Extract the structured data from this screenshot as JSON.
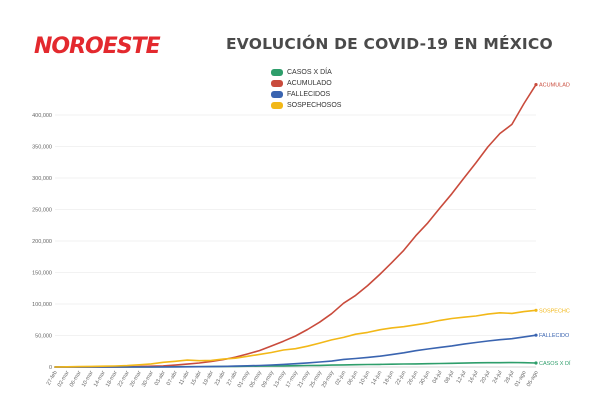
{
  "header": {
    "brand": "NOROESTE",
    "brand_color": "#e3292e",
    "title": "EVOLUCIÓN DE COVID-19 EN MÉXICO"
  },
  "chart_data": {
    "type": "line",
    "title": "EVOLUCIÓN DE COVID-19 EN MÉXICO",
    "xlabel": "",
    "ylabel": "",
    "ylim": [
      0,
      400000
    ],
    "yticks": [
      0,
      50000,
      100000,
      150000,
      200000,
      250000,
      300000,
      350000,
      400000
    ],
    "ytick_labels": [
      "0",
      "50,000",
      "100,000",
      "150,000",
      "200,000",
      "250,000",
      "300,000",
      "350,000",
      "400,000"
    ],
    "grid": true,
    "legend_position": "top-center",
    "x": [
      "27-feb",
      "02-mar",
      "06-mar",
      "10-mar",
      "14-mar",
      "18-mar",
      "22-mar",
      "26-mar",
      "30-mar",
      "03-abr",
      "07-abr",
      "11-abr",
      "15-abr",
      "19-abr",
      "23-abr",
      "27-abr",
      "01-may",
      "05-may",
      "09-may",
      "13-may",
      "17-may",
      "21-may",
      "25-may",
      "29-may",
      "02-jun",
      "06-jun",
      "10-jun",
      "14-jun",
      "18-jun",
      "22-jun",
      "26-jun",
      "30-jun",
      "04-jul",
      "08-jul",
      "12-jul",
      "16-jul",
      "20-jul",
      "24-jul",
      "28-jul",
      "01-ago",
      "05-ago"
    ],
    "series": [
      {
        "name": "CASOS X DÍA",
        "color": "#2e9e6b",
        "end_label": "CASOS X DÍ",
        "values": [
          0,
          0,
          0,
          0,
          10,
          20,
          60,
          120,
          200,
          300,
          400,
          500,
          550,
          700,
          900,
          1000,
          1300,
          1500,
          1600,
          1800,
          2000,
          2400,
          2600,
          3000,
          3300,
          3600,
          3900,
          4200,
          4500,
          4700,
          5000,
          5300,
          5500,
          5800,
          6200,
          6600,
          6800,
          6800,
          7100,
          6900,
          6300
        ]
      },
      {
        "name": "ACUMULADO",
        "color": "#c94b3c",
        "end_label": "ACUMULAD",
        "values": [
          0,
          5,
          10,
          20,
          40,
          120,
          300,
          600,
          1200,
          1800,
          3000,
          4600,
          6300,
          8800,
          11800,
          15500,
          20700,
          26000,
          33400,
          41000,
          49200,
          59600,
          71100,
          84600,
          101200,
          113600,
          129200,
          146800,
          165500,
          185100,
          208400,
          228800,
          252200,
          275000,
          299800,
          324000,
          349400,
          370700,
          385000,
          418200,
          448300
        ]
      },
      {
        "name": "FALLECIDOS",
        "color": "#3a64b0",
        "end_label": "FALLECIDO",
        "values": [
          0,
          0,
          0,
          0,
          0,
          0,
          5,
          20,
          30,
          100,
          200,
          300,
          400,
          700,
          1000,
          1400,
          1900,
          2400,
          3200,
          4200,
          5200,
          6500,
          8000,
          9400,
          12000,
          13500,
          15300,
          17100,
          19700,
          22600,
          25800,
          28500,
          31100,
          33500,
          36300,
          38900,
          41200,
          43300,
          44900,
          47700,
          50500
        ]
      },
      {
        "name": "SOSPECHOSOS",
        "color": "#f2b818",
        "end_label": "SOSPECHC",
        "values": [
          0,
          300,
          600,
          900,
          1200,
          1600,
          2200,
          3500,
          5000,
          7500,
          9000,
          11000,
          10000,
          10500,
          12500,
          14000,
          17000,
          20000,
          23000,
          27000,
          29000,
          33000,
          38000,
          43000,
          47000,
          52000,
          55000,
          59000,
          62000,
          64000,
          67000,
          70000,
          74000,
          77000,
          79000,
          81000,
          84000,
          86000,
          85000,
          88000,
          90000
        ]
      }
    ]
  }
}
